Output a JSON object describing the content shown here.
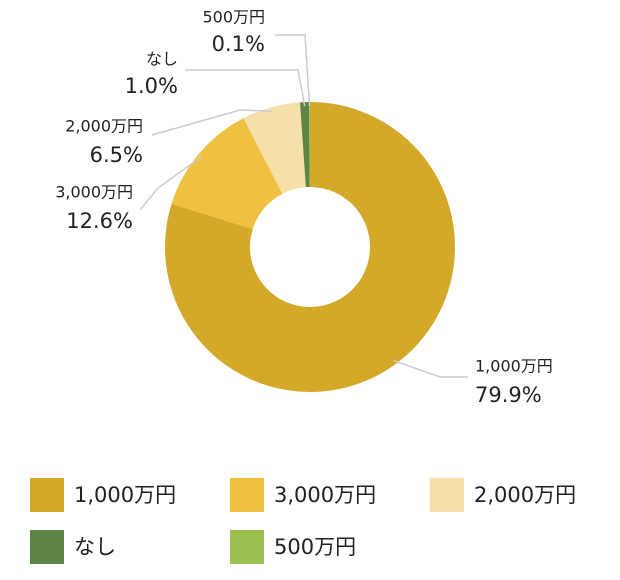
{
  "chart_data": {
    "type": "pie",
    "categories": [
      "1,000万円",
      "3,000万円",
      "2,000万円",
      "なし",
      "500万円"
    ],
    "series": [
      {
        "values": [
          79.9,
          12.6,
          6.5,
          1.0,
          0.1
        ],
        "value_labels": [
          "79.9%",
          "12.6%",
          "6.5%",
          "1.0%",
          "0.1%"
        ],
        "colors": [
          "#d4a828",
          "#f0c040",
          "#f5e0a8",
          "#5e8448",
          "#9dc050"
        ]
      }
    ],
    "donut": true
  }
}
